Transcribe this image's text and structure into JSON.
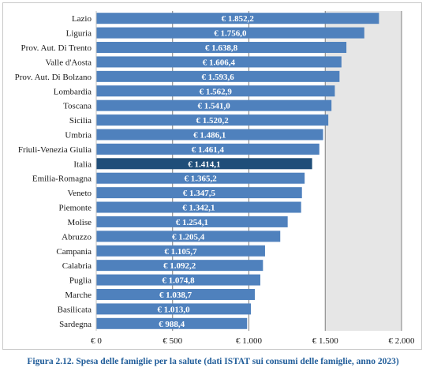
{
  "chart_data": {
    "type": "bar",
    "orientation": "horizontal",
    "categories": [
      "Lazio",
      "Liguria",
      "Prov. Aut. Di Trento",
      "Valle d'Aosta",
      "Prov. Aut. Di Bolzano",
      "Lombardia",
      "Toscana",
      "Sicilia",
      "Umbria",
      "Friuli-Venezia Giulia",
      "Italia",
      "Emilia-Romagna",
      "Veneto",
      "Piemonte",
      "Molise",
      "Abruzzo",
      "Campania",
      "Calabria",
      "Puglia",
      "Marche",
      "Basilicata",
      "Sardegna"
    ],
    "values": [
      1852.2,
      1756.0,
      1638.8,
      1606.4,
      1593.6,
      1562.9,
      1541.0,
      1520.2,
      1486.1,
      1461.4,
      1414.1,
      1365.2,
      1347.5,
      1342.1,
      1254.1,
      1205.4,
      1105.7,
      1092.2,
      1074.8,
      1038.7,
      1013.0,
      988.4
    ],
    "data_labels": [
      "€ 1.852,2",
      "€ 1.756,0",
      "€ 1.638,8",
      "€ 1.606,4",
      "€ 1.593,6",
      "€ 1.562,9",
      "€ 1.541,0",
      "€ 1.520,2",
      "€ 1.486,1",
      "€ 1.461,4",
      "€ 1.414,1",
      "€ 1.365,2",
      "€ 1.347,5",
      "€ 1.342,1",
      "€ 1.254,1",
      "€ 1.205,4",
      "€ 1.105,7",
      "€ 1.092,2",
      "€ 1.074,8",
      "€ 1.038,7",
      "€ 1.013,0",
      "€ 988,4"
    ],
    "highlight_category": "Italia",
    "xlim": [
      0,
      2000
    ],
    "x_ticks": [
      0,
      500,
      1000,
      1500,
      2000
    ],
    "x_tick_labels": [
      "€ 0",
      "€ 500",
      "€ 1.000",
      "€ 1.500",
      "€ 2.000"
    ],
    "grid": "vertical",
    "shaded_band": [
      1500,
      2000
    ],
    "title": "",
    "xlabel": "",
    "ylabel": "",
    "colors": {
      "bar": "#4f81bd",
      "highlight_bar": "#1f4e79",
      "band": "#e6e6e6",
      "grid": "#7f7f7f"
    }
  },
  "caption": "Figura 2.12. Spesa delle famiglie per la salute (dati ISTAT sui consumi delle famiglie, anno 2023)"
}
